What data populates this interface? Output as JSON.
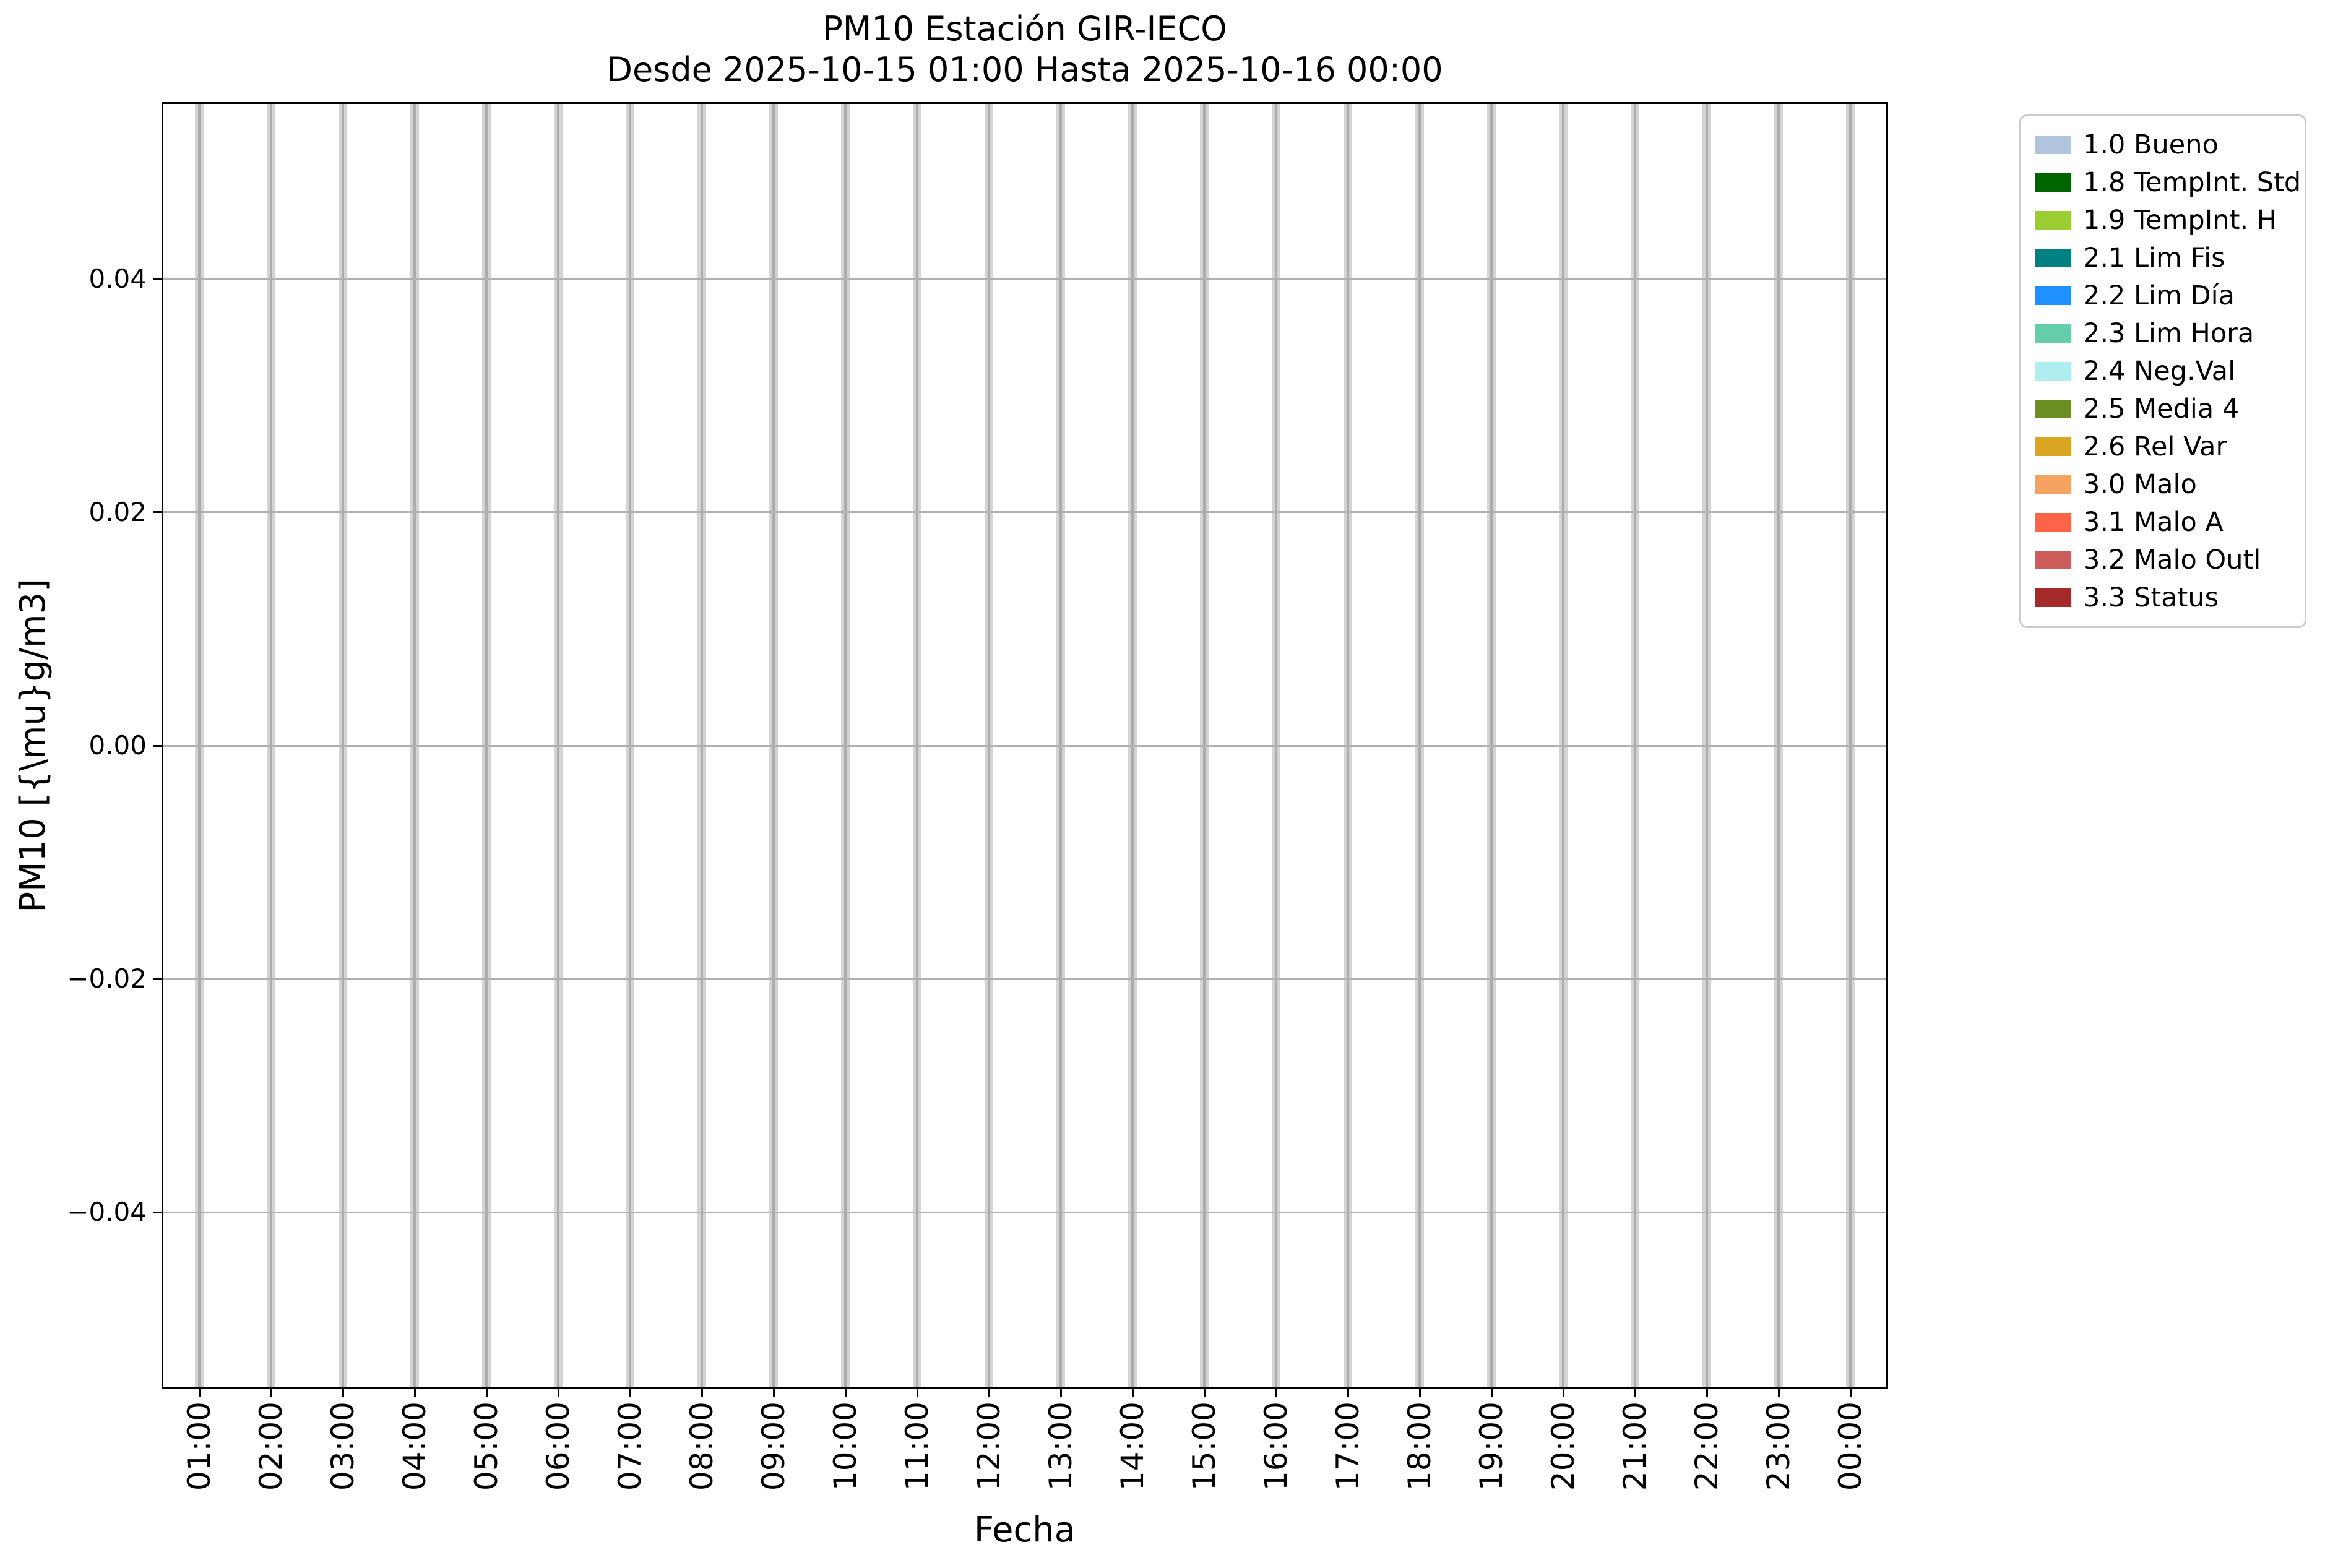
{
  "title": "PM10 Estación GIR-IECO",
  "subtitle": "Desde 2025-10-15 01:00 Hasta 2025-10-16 00:00",
  "xlabel": "Fecha",
  "ylabel": "PM10 [{\\mu}g/m3]",
  "ytick_labels": [
    "0.04",
    "0.02",
    "0.00",
    "−0.02",
    "−0.04"
  ],
  "chart_data": {
    "type": "bar",
    "title": "PM10 Estación GIR-IECO",
    "subtitle": "Desde 2025-10-15 01:00 Hasta 2025-10-16 00:00",
    "xlabel": "Fecha",
    "ylabel": "PM10 [{\\mu}g/m3]",
    "categories": [
      "01:00",
      "02:00",
      "03:00",
      "04:00",
      "05:00",
      "06:00",
      "07:00",
      "08:00",
      "09:00",
      "10:00",
      "11:00",
      "12:00",
      "13:00",
      "14:00",
      "15:00",
      "16:00",
      "17:00",
      "18:00",
      "19:00",
      "20:00",
      "21:00",
      "22:00",
      "23:00",
      "00:00"
    ],
    "series": [],
    "values_note": "no PM10 bar heights visible; every hour shows a full-height light-gray placeholder stripe",
    "placeholder_stripes": {
      "at_every_category": true,
      "color": "#d4d4d4"
    },
    "ylim": [
      -0.055,
      0.055
    ],
    "yticks": [
      0.04,
      0.02,
      0.0,
      -0.02,
      -0.04
    ],
    "grid": true,
    "grid_color": "#ababab",
    "legend_position": "outside upper right",
    "legend": [
      {
        "label": "1.0 Bueno",
        "color": "#b0c4de"
      },
      {
        "label": "1.8 TempInt. Std",
        "color": "#006400"
      },
      {
        "label": "1.9 TempInt. H",
        "color": "#9acd32"
      },
      {
        "label": "2.1 Lim Fis",
        "color": "#008080"
      },
      {
        "label": "2.2 Lim Día",
        "color": "#1e90ff"
      },
      {
        "label": "2.3 Lim Hora",
        "color": "#66cdaa"
      },
      {
        "label": "2.4 Neg.Val",
        "color": "#afeeee"
      },
      {
        "label": "2.5 Media 4",
        "color": "#6b8e23"
      },
      {
        "label": "2.6 Rel Var",
        "color": "#daa520"
      },
      {
        "label": "3.0 Malo",
        "color": "#f4a460"
      },
      {
        "label": "3.1 Malo A",
        "color": "#ff6347"
      },
      {
        "label": "3.2 Malo Outl",
        "color": "#cd5c5c"
      },
      {
        "label": "3.3 Status",
        "color": "#a52a2a"
      }
    ]
  }
}
